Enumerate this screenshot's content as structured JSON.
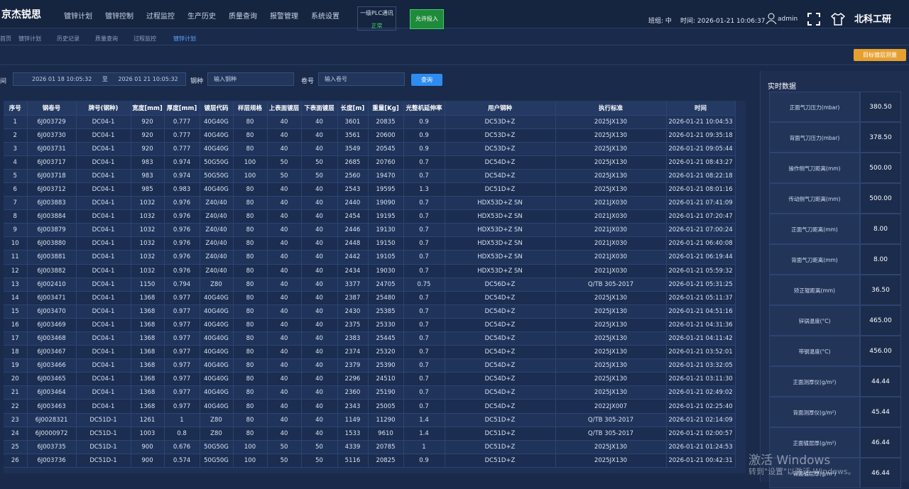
{
  "header": {
    "logo": "京杰锐思",
    "nav": [
      "镀锌计划",
      "镀锌控制",
      "过程监控",
      "生产历史",
      "质量查询",
      "报警管理",
      "系统设置"
    ],
    "plc_label": "一级PLC通讯",
    "plc_status": "正常",
    "allow_button": "允许投入",
    "shift": "班组: 中",
    "time": "时间: 2026-01-21 10:06:37",
    "user": "admin",
    "brand": "北科工研"
  },
  "tabs": [
    "首页",
    "镀锌计划",
    "历史记录",
    "质量查询",
    "过程监控",
    "镀锌计划"
  ],
  "toolbar": {
    "target_button": "目标镀层测量"
  },
  "filter": {
    "time_label": "间",
    "start": "2026 01 18 10:05:32",
    "sep": "至",
    "end": "2026 01 21 10:05:32",
    "steel_label": "钢种",
    "steel_placeholder": "输入钢种",
    "coil_label": "卷号",
    "coil_placeholder": "输入卷号",
    "query_button": "查询"
  },
  "table": {
    "columns": [
      "序号",
      "钢卷号",
      "牌号(钢种)",
      "宽度[mm]",
      "厚度[mm]",
      "镀层代码",
      "样层规格",
      "上表面镀层",
      "下表面镀层",
      "长度[m]",
      "重量[Kg]",
      "光整机延伸率",
      "用户钢种",
      "执行标准",
      "时间"
    ],
    "rows": [
      [
        "1",
        "6J003729",
        "DC04-1",
        "920",
        "0.777",
        "40G40G",
        "80",
        "40",
        "40",
        "3601",
        "20835",
        "0.9",
        "DC53D+Z",
        "2025JX130",
        "2026-01-21 10:04:53"
      ],
      [
        "2",
        "6J003730",
        "DC04-1",
        "920",
        "0.777",
        "40G40G",
        "80",
        "40",
        "40",
        "3561",
        "20600",
        "0.9",
        "DC53D+Z",
        "2025JX130",
        "2026-01-21 09:35:18"
      ],
      [
        "3",
        "6J003731",
        "DC04-1",
        "920",
        "0.777",
        "40G40G",
        "80",
        "40",
        "40",
        "3549",
        "20545",
        "0.9",
        "DC53D+Z",
        "2025JX130",
        "2026-01-21 09:05:44"
      ],
      [
        "4",
        "6J003717",
        "DC04-1",
        "983",
        "0.974",
        "50G50G",
        "100",
        "50",
        "50",
        "2685",
        "20760",
        "0.7",
        "DC54D+Z",
        "2025JX130",
        "2026-01-21 08:43:27"
      ],
      [
        "5",
        "6J003718",
        "DC04-1",
        "983",
        "0.974",
        "50G50G",
        "100",
        "50",
        "50",
        "2560",
        "19470",
        "0.7",
        "DC54D+Z",
        "2025JX130",
        "2026-01-21 08:22:18"
      ],
      [
        "6",
        "6J003712",
        "DC04-1",
        "985",
        "0.983",
        "40G40G",
        "80",
        "40",
        "40",
        "2543",
        "19595",
        "1.3",
        "DC51D+Z",
        "2025JX130",
        "2026-01-21 08:01:16"
      ],
      [
        "7",
        "6J003883",
        "DC04-1",
        "1032",
        "0.976",
        "Z40/40",
        "80",
        "40",
        "40",
        "2440",
        "19090",
        "0.7",
        "HDX53D+Z SN",
        "2021JX030",
        "2026-01-21 07:41:09"
      ],
      [
        "8",
        "6J003884",
        "DC04-1",
        "1032",
        "0.976",
        "Z40/40",
        "80",
        "40",
        "40",
        "2454",
        "19195",
        "0.7",
        "HDX53D+Z SN",
        "2021JX030",
        "2026-01-21 07:20:47"
      ],
      [
        "9",
        "6J003879",
        "DC04-1",
        "1032",
        "0.976",
        "Z40/40",
        "80",
        "40",
        "40",
        "2446",
        "19130",
        "0.7",
        "HDX53D+Z SN",
        "2021JX030",
        "2026-01-21 07:00:24"
      ],
      [
        "10",
        "6J003880",
        "DC04-1",
        "1032",
        "0.976",
        "Z40/40",
        "80",
        "40",
        "40",
        "2448",
        "19150",
        "0.7",
        "HDX53D+Z SN",
        "2021JX030",
        "2026-01-21 06:40:08"
      ],
      [
        "11",
        "6J003881",
        "DC04-1",
        "1032",
        "0.976",
        "Z40/40",
        "80",
        "40",
        "40",
        "2442",
        "19105",
        "0.7",
        "HDX53D+Z SN",
        "2021JX030",
        "2026-01-21 06:19:44"
      ],
      [
        "12",
        "6J003882",
        "DC04-1",
        "1032",
        "0.976",
        "Z40/40",
        "80",
        "40",
        "40",
        "2434",
        "19030",
        "0.7",
        "HDX53D+Z SN",
        "2021JX030",
        "2026-01-21 05:59:32"
      ],
      [
        "13",
        "6J002410",
        "DC04-1",
        "1150",
        "0.794",
        "Z80",
        "80",
        "40",
        "40",
        "3377",
        "24705",
        "0.75",
        "DC56D+Z",
        "Q/TB 305-2017",
        "2026-01-21 05:31:25"
      ],
      [
        "14",
        "6J003471",
        "DC04-1",
        "1368",
        "0.977",
        "40G40G",
        "80",
        "40",
        "40",
        "2387",
        "25480",
        "0.7",
        "DC54D+Z",
        "2025JX130",
        "2026-01-21 05:11:37"
      ],
      [
        "15",
        "6J003470",
        "DC04-1",
        "1368",
        "0.977",
        "40G40G",
        "80",
        "40",
        "40",
        "2430",
        "25385",
        "0.7",
        "DC54D+Z",
        "2025JX130",
        "2026-01-21 04:51:16"
      ],
      [
        "16",
        "6J003469",
        "DC04-1",
        "1368",
        "0.977",
        "40G40G",
        "80",
        "40",
        "40",
        "2375",
        "25330",
        "0.7",
        "DC54D+Z",
        "2025JX130",
        "2026-01-21 04:31:36"
      ],
      [
        "17",
        "6J003468",
        "DC04-1",
        "1368",
        "0.977",
        "40G40G",
        "80",
        "40",
        "40",
        "2383",
        "25445",
        "0.7",
        "DC54D+Z",
        "2025JX130",
        "2026-01-21 04:11:42"
      ],
      [
        "18",
        "6J003467",
        "DC04-1",
        "1368",
        "0.977",
        "40G40G",
        "80",
        "40",
        "40",
        "2374",
        "25320",
        "0.7",
        "DC54D+Z",
        "2025JX130",
        "2026-01-21 03:52:01"
      ],
      [
        "19",
        "6J003466",
        "DC04-1",
        "1368",
        "0.977",
        "40G40G",
        "80",
        "40",
        "40",
        "2379",
        "25390",
        "0.7",
        "DC54D+Z",
        "2025JX130",
        "2026-01-21 03:32:05"
      ],
      [
        "20",
        "6J003465",
        "DC04-1",
        "1368",
        "0.977",
        "40G40G",
        "80",
        "40",
        "40",
        "2296",
        "24510",
        "0.7",
        "DC54D+Z",
        "2025JX130",
        "2026-01-21 03:11:30"
      ],
      [
        "21",
        "6J003464",
        "DC04-1",
        "1368",
        "0.977",
        "40G40G",
        "80",
        "40",
        "40",
        "2360",
        "25190",
        "0.7",
        "DC54D+Z",
        "2025JX130",
        "2026-01-21 02:49:02"
      ],
      [
        "22",
        "6J003463",
        "DC04-1",
        "1368",
        "0.977",
        "40G40G",
        "80",
        "40",
        "40",
        "2343",
        "25005",
        "0.7",
        "DC54D+Z",
        "2022JX007",
        "2026-01-21 02:25:40"
      ],
      [
        "23",
        "6J0028321",
        "DC51D-1",
        "1261",
        "1",
        "Z80",
        "80",
        "40",
        "40",
        "1149",
        "11290",
        "1.4",
        "DC51D+Z",
        "Q/TB 305-2017",
        "2026-01-21 02:14:09"
      ],
      [
        "24",
        "6J0000972",
        "DC51D-1",
        "1003",
        "0.8",
        "Z80",
        "80",
        "40",
        "40",
        "1533",
        "9610",
        "1.4",
        "DC51D+Z",
        "Q/TB 305-2017",
        "2026-01-21 02:00:57"
      ],
      [
        "25",
        "6J003735",
        "DC51D-1",
        "900",
        "0.676",
        "50G50G",
        "100",
        "50",
        "50",
        "4339",
        "20785",
        "1",
        "DC51D+Z",
        "2025JX130",
        "2026-01-21 01:24:53"
      ],
      [
        "26",
        "6J003736",
        "DC51D-1",
        "900",
        "0.574",
        "50G50G",
        "100",
        "50",
        "50",
        "5116",
        "20825",
        "0.9",
        "DC51D+Z",
        "2025JX130",
        "2026-01-21 00:42:31"
      ]
    ]
  },
  "realtime": {
    "title": "实时数据",
    "items": [
      [
        "正面气刀压力(mbar)",
        "380.50"
      ],
      [
        "背面气刀压力(mbar)",
        "378.50"
      ],
      [
        "操作侧气刀距离(mm)",
        "500.00"
      ],
      [
        "传动侧气刀距离(mm)",
        "500.00"
      ],
      [
        "正面气刀距离(mm)",
        "8.00"
      ],
      [
        "背面气刀距离(mm)",
        "8.00"
      ],
      [
        "矫正辊距离(mm)",
        "36.50"
      ],
      [
        "锌锅温度(°C)",
        "465.00"
      ],
      [
        "带钢温度(°C)",
        "456.00"
      ],
      [
        "正面测厚仪(g/m²)",
        "44.44"
      ],
      [
        "背面测厚仪(g/m²)",
        "45.44"
      ],
      [
        "正面镀层厚(g/m²)",
        "46.44"
      ],
      [
        "背面镀层厚(g/m²)",
        "46.44"
      ]
    ]
  },
  "watermark": {
    "line1": "激活 Windows",
    "line2": "转到\"设置\"以激活 Windows。"
  }
}
